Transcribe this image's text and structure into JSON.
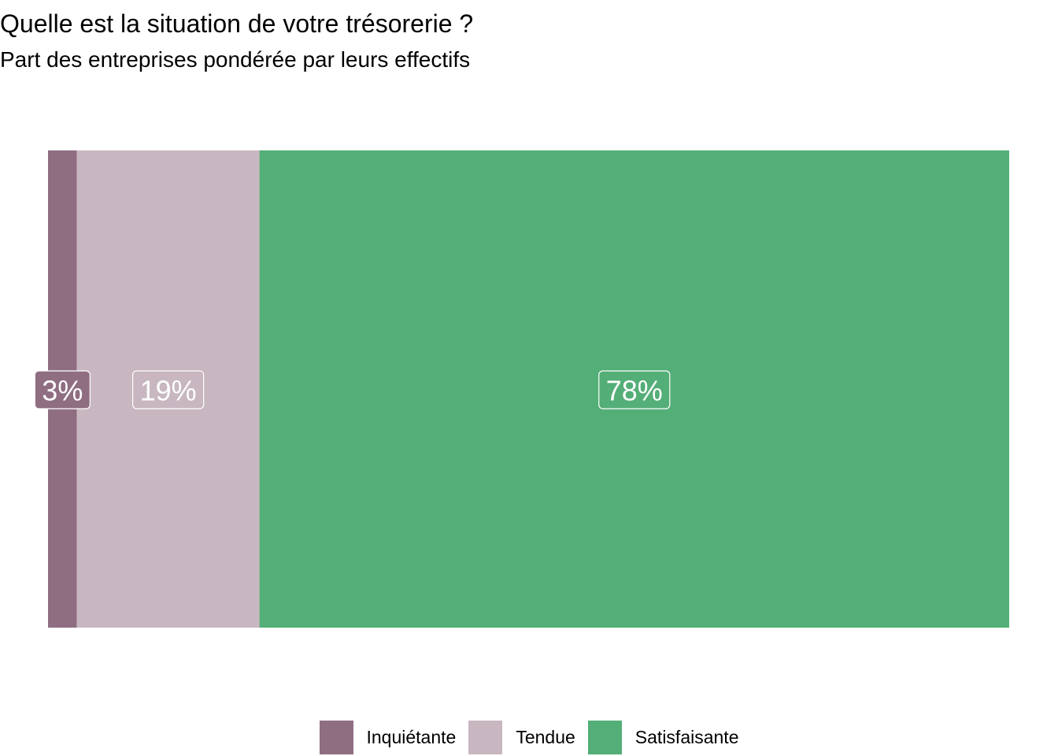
{
  "title": "Quelle est la situation de votre trésorerie ?",
  "subtitle": "Part des entreprises pondérée par leurs effectifs",
  "chart_data": {
    "type": "bar",
    "orientation": "horizontal",
    "stacked": true,
    "normalized": true,
    "xlim": [
      0,
      100
    ],
    "grid": false,
    "legend_position": "bottom",
    "series": [
      {
        "name": "Inquiétante",
        "value": 3,
        "label": "3%",
        "color": "#8F6E82"
      },
      {
        "name": "Tendue",
        "value": 19,
        "label": "19%",
        "color": "#C8B7C0"
      },
      {
        "name": "Satisfaisante",
        "value": 78,
        "label": "78%",
        "color": "#54AE77"
      }
    ]
  }
}
